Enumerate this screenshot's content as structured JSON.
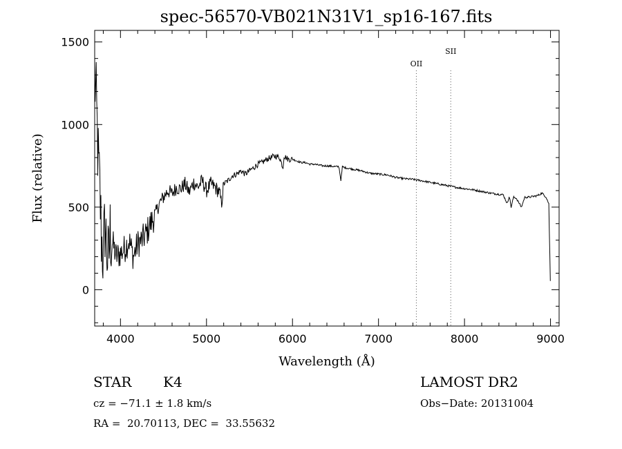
{
  "chart_data": {
    "type": "line",
    "title": "spec-56570-VB021N31V1_sp16-167.fits",
    "xlabel": "Wavelength (Å)",
    "ylabel": "Flux (relative)",
    "xlim": [
      3700,
      9100
    ],
    "ylim": [
      -220,
      1570
    ],
    "xticks": [
      4000,
      5000,
      6000,
      7000,
      8000,
      9000
    ],
    "yticks": [
      0,
      500,
      1000,
      1500
    ],
    "grid": false,
    "series": [
      {
        "x": [
          3700,
          3720,
          3740,
          3760,
          3780,
          3800,
          3820,
          3840,
          3860,
          3880,
          3900,
          3950,
          4000,
          4050,
          4100,
          4150,
          4200,
          4250,
          4300,
          4350,
          4400,
          4450,
          4500,
          4550,
          4600,
          4650,
          4700,
          4750,
          4800,
          4850,
          4900,
          4950,
          5000,
          5050,
          5100,
          5150,
          5175,
          5200,
          5250,
          5300,
          5350,
          5400,
          5450,
          5500,
          5550,
          5600,
          5650,
          5700,
          5750,
          5800,
          5850,
          5890,
          5900,
          5950,
          6000,
          6050,
          6100,
          6150,
          6200,
          6250,
          6300,
          6350,
          6400,
          6450,
          6500,
          6540,
          6563,
          6580,
          6600,
          6700,
          6800,
          6900,
          7000,
          7100,
          7200,
          7300,
          7400,
          7500,
          7600,
          7700,
          7800,
          7900,
          8000,
          8100,
          8200,
          8300,
          8400,
          8450,
          8498,
          8520,
          8542,
          8570,
          8600,
          8662,
          8700,
          8750,
          8800,
          8850,
          8900,
          8950,
          8980,
          9000
        ],
        "y": [
          1300,
          1100,
          800,
          600,
          300,
          200,
          400,
          250,
          150,
          350,
          300,
          200,
          220,
          250,
          300,
          200,
          280,
          300,
          340,
          400,
          450,
          520,
          560,
          600,
          580,
          620,
          610,
          640,
          590,
          650,
          620,
          660,
          600,
          640,
          620,
          590,
          520,
          640,
          660,
          690,
          700,
          720,
          700,
          720,
          740,
          760,
          770,
          790,
          800,
          810,
          800,
          740,
          810,
          790,
          790,
          780,
          770,
          770,
          760,
          760,
          755,
          750,
          750,
          748,
          745,
          745,
          660,
          745,
          740,
          730,
          720,
          705,
          700,
          695,
          680,
          672,
          668,
          660,
          650,
          640,
          630,
          620,
          612,
          605,
          595,
          585,
          578,
          575,
          520,
          570,
          500,
          560,
          555,
          500,
          560,
          560,
          565,
          570,
          585,
          560,
          520,
          0
        ]
      }
    ],
    "lines": [
      {
        "label": "OII",
        "x": 7440
      },
      {
        "label": "SII",
        "x": 7840
      }
    ]
  },
  "footer": {
    "object_class": "STAR",
    "subclass": "K4",
    "survey": "LAMOST DR2",
    "cz": "cz = −71.1 ± 1.8 km/s",
    "obs_date": "Obs−Date: 20131004",
    "coords": "RA =  20.70113, DEC =  33.55632"
  }
}
